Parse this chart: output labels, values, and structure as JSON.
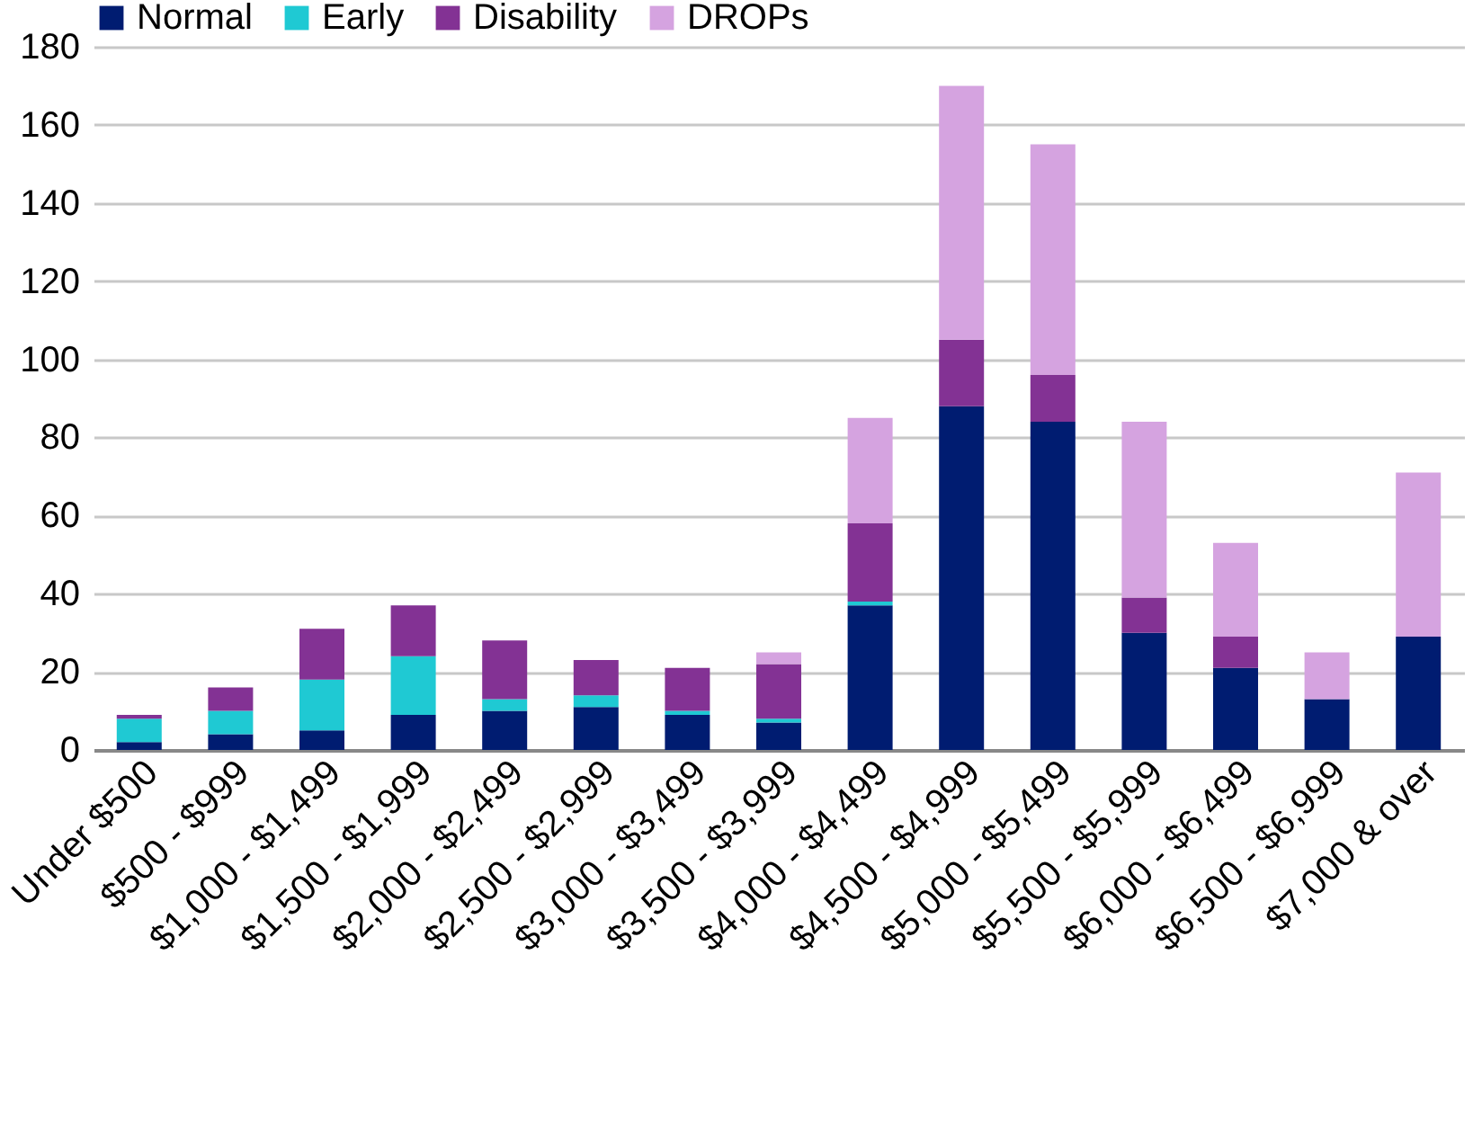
{
  "chart_data": {
    "type": "bar",
    "stacked": true,
    "legend": "top",
    "grid": "y",
    "categories": [
      "Under $500",
      "$500 - $999",
      "$1,000 - $1,499",
      "$1,500 - $1,999",
      "$2,000 - $2,499",
      "$2,500 - $2,999",
      "$3,000 - $3,499",
      "$3,500 - $3,999",
      "$4,000 - $4,499",
      "$4,500 - $4,999",
      "$5,000 - $5,499",
      "$5,500 - $5,999",
      "$6,000 - $6,499",
      "$6,500 - $6,999",
      "$7,000 & over"
    ],
    "ylim": [
      0,
      180
    ],
    "yticks": [
      0,
      20,
      40,
      60,
      80,
      100,
      120,
      140,
      160,
      180
    ],
    "series": [
      {
        "name": "Normal",
        "color": "#001c71",
        "values": [
          2,
          4,
          5,
          9,
          10,
          11,
          9,
          7,
          37,
          88,
          84,
          30,
          21,
          13,
          29
        ]
      },
      {
        "name": "Early",
        "color": "#1fc9d3",
        "values": [
          6,
          6,
          13,
          15,
          3,
          3,
          1,
          1,
          1,
          0,
          0,
          0,
          0,
          0,
          0
        ]
      },
      {
        "name": "Disability",
        "color": "#833294",
        "values": [
          1,
          6,
          13,
          13,
          15,
          9,
          11,
          14,
          20,
          17,
          12,
          9,
          8,
          0,
          0
        ]
      },
      {
        "name": "DROPs",
        "color": "#d5a3e0",
        "values": [
          0,
          0,
          0,
          0,
          0,
          0,
          0,
          3,
          27,
          65,
          59,
          45,
          24,
          12,
          42
        ]
      }
    ]
  }
}
